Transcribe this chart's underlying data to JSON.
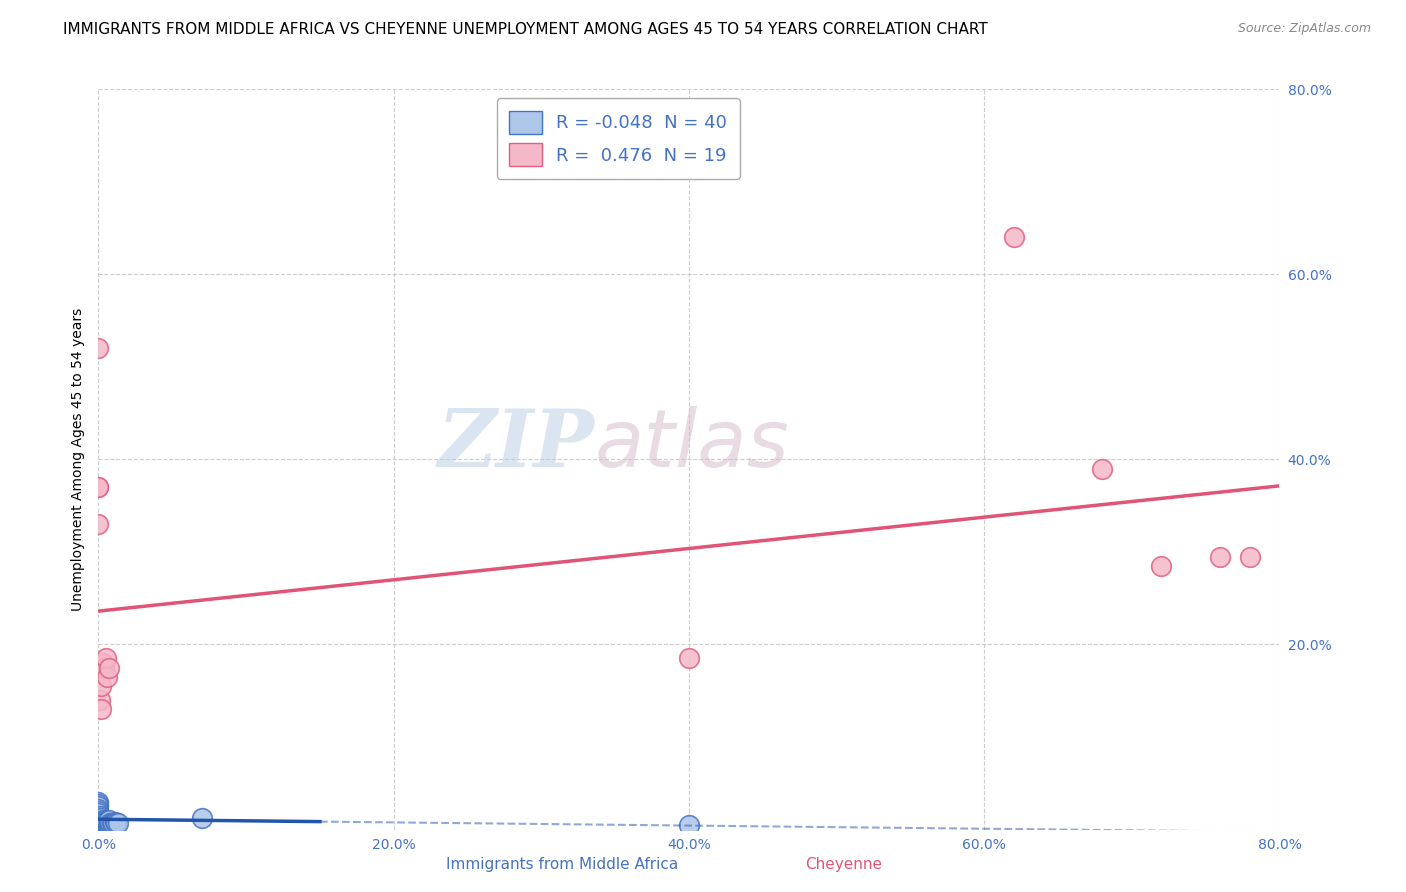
{
  "title": "IMMIGRANTS FROM MIDDLE AFRICA VS CHEYENNE UNEMPLOYMENT AMONG AGES 45 TO 54 YEARS CORRELATION CHART",
  "source": "Source: ZipAtlas.com",
  "xlabel_blue": "Immigrants from Middle Africa",
  "xlabel_pink": "Cheyenne",
  "ylabel": "Unemployment Among Ages 45 to 54 years",
  "R_blue": -0.048,
  "N_blue": 40,
  "R_pink": 0.476,
  "N_pink": 19,
  "xlim": [
    0.0,
    0.8
  ],
  "ylim": [
    0.0,
    0.8
  ],
  "xticks": [
    0.0,
    0.2,
    0.4,
    0.6,
    0.8
  ],
  "yticks": [
    0.0,
    0.2,
    0.4,
    0.6,
    0.8
  ],
  "xticklabels": [
    "0.0%",
    "20.0%",
    "40.0%",
    "60.0%",
    "80.0%"
  ],
  "yticklabels": [
    "",
    "20.0%",
    "40.0%",
    "60.0%",
    "80.0%"
  ],
  "blue_points": [
    [
      0.0,
      0.03
    ],
    [
      0.0,
      0.028
    ],
    [
      0.0,
      0.025
    ],
    [
      0.0,
      0.022
    ],
    [
      0.0,
      0.02
    ],
    [
      0.0,
      0.018
    ],
    [
      0.0,
      0.015
    ],
    [
      0.0,
      0.013
    ],
    [
      0.0,
      0.01
    ],
    [
      0.0,
      0.008
    ],
    [
      0.0,
      0.006
    ],
    [
      0.0,
      0.005
    ],
    [
      0.001,
      0.006
    ],
    [
      0.001,
      0.008
    ],
    [
      0.001,
      0.01
    ],
    [
      0.001,
      0.012
    ],
    [
      0.001,
      0.015
    ],
    [
      0.002,
      0.006
    ],
    [
      0.002,
      0.008
    ],
    [
      0.002,
      0.01
    ],
    [
      0.002,
      0.012
    ],
    [
      0.003,
      0.006
    ],
    [
      0.003,
      0.008
    ],
    [
      0.003,
      0.01
    ],
    [
      0.004,
      0.007
    ],
    [
      0.004,
      0.009
    ],
    [
      0.005,
      0.007
    ],
    [
      0.005,
      0.009
    ],
    [
      0.006,
      0.007
    ],
    [
      0.006,
      0.009
    ],
    [
      0.007,
      0.007
    ],
    [
      0.007,
      0.01
    ],
    [
      0.008,
      0.007
    ],
    [
      0.009,
      0.007
    ],
    [
      0.01,
      0.007
    ],
    [
      0.011,
      0.008
    ],
    [
      0.012,
      0.007
    ],
    [
      0.013,
      0.007
    ],
    [
      0.07,
      0.012
    ],
    [
      0.4,
      0.005
    ]
  ],
  "pink_points": [
    [
      0.0,
      0.52
    ],
    [
      0.0,
      0.37
    ],
    [
      0.0,
      0.37
    ],
    [
      0.0,
      0.33
    ],
    [
      0.001,
      0.175
    ],
    [
      0.001,
      0.14
    ],
    [
      0.002,
      0.155
    ],
    [
      0.002,
      0.13
    ],
    [
      0.003,
      0.18
    ],
    [
      0.004,
      0.175
    ],
    [
      0.005,
      0.185
    ],
    [
      0.006,
      0.165
    ],
    [
      0.007,
      0.175
    ],
    [
      0.4,
      0.185
    ],
    [
      0.62,
      0.64
    ],
    [
      0.68,
      0.39
    ],
    [
      0.72,
      0.285
    ],
    [
      0.76,
      0.295
    ],
    [
      0.78,
      0.295
    ]
  ],
  "blue_color": "#aec6e8",
  "pink_color": "#f4b8c8",
  "blue_edge_color": "#4472c4",
  "pink_edge_color": "#e06080",
  "blue_line_color": "#2255aa",
  "pink_line_color": "#e05575",
  "background_color": "#ffffff",
  "grid_color": "#c8c8c8",
  "watermark_zip": "ZIP",
  "watermark_atlas": "atlas",
  "title_fontsize": 11,
  "label_fontsize": 10,
  "tick_fontsize": 10,
  "source_fontsize": 9
}
